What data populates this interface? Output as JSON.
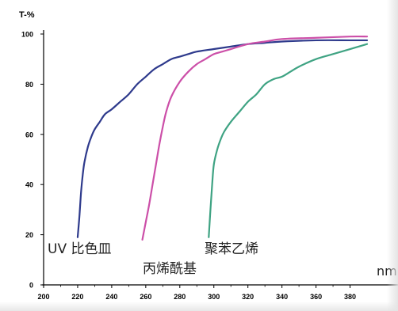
{
  "chart_data": {
    "type": "line",
    "title": "",
    "ylabel": "T-%",
    "xlabel": "nm",
    "xlim": [
      200,
      390
    ],
    "ylim": [
      0,
      100
    ],
    "x_ticks": [
      200,
      220,
      240,
      260,
      280,
      300,
      320,
      340,
      360,
      380
    ],
    "y_ticks": [
      0,
      20,
      40,
      60,
      80,
      100
    ],
    "grid": false,
    "series": [
      {
        "name": "UV 比色皿",
        "color": "#2e3a8c",
        "x": [
          220,
          221,
          222,
          223,
          224,
          226,
          228,
          230,
          233,
          236,
          240,
          245,
          250,
          255,
          260,
          265,
          270,
          275,
          280,
          285,
          290,
          300,
          310,
          320,
          330,
          340,
          360,
          380,
          390
        ],
        "y": [
          19,
          27,
          37,
          44,
          49,
          55,
          59,
          62,
          65,
          68,
          70,
          73,
          76,
          80,
          83,
          86,
          88,
          90,
          91,
          92,
          93,
          94,
          95,
          96,
          96.5,
          97,
          97.5,
          97.5,
          97.5
        ]
      },
      {
        "name": "丙烯酰基",
        "color": "#cc4fa8",
        "x": [
          258,
          260,
          262,
          264,
          266,
          268,
          270,
          272,
          275,
          280,
          285,
          290,
          295,
          300,
          305,
          310,
          320,
          330,
          340,
          360,
          380,
          390
        ],
        "y": [
          18,
          25,
          32,
          40,
          48,
          56,
          63,
          69,
          75,
          81,
          85,
          88,
          90,
          92,
          93,
          94,
          96,
          97,
          98,
          98.5,
          99,
          99
        ]
      },
      {
        "name": "聚苯乙烯",
        "color": "#3fa383",
        "x": [
          297,
          298,
          299,
          300,
          302,
          304,
          306,
          310,
          315,
          320,
          325,
          330,
          335,
          340,
          345,
          350,
          360,
          370,
          380,
          390
        ],
        "y": [
          19,
          30,
          40,
          48,
          54,
          58,
          61,
          65,
          69,
          73,
          76,
          80,
          82,
          83,
          85,
          87,
          90,
          92,
          94,
          96
        ]
      }
    ]
  }
}
